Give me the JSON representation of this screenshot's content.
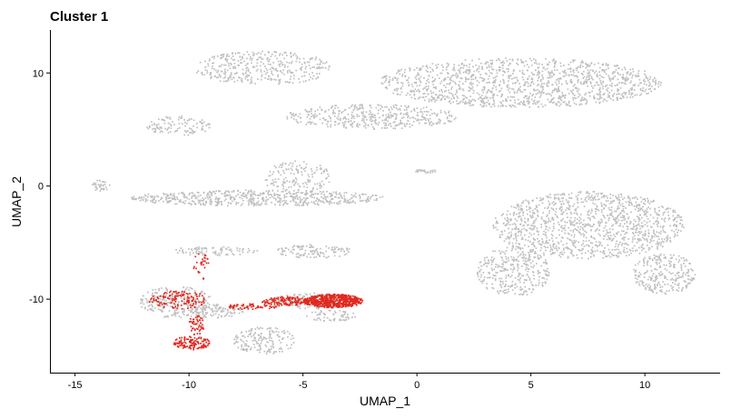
{
  "chart_data": {
    "type": "scatter",
    "title": "Cluster 1",
    "xlabel": "UMAP_1",
    "ylabel": "UMAP_2",
    "xlim": [
      -16.1,
      13.3
    ],
    "ylim": [
      -16.5,
      13.8
    ],
    "x_ticks": [
      -15,
      -10,
      -5,
      0,
      5,
      10
    ],
    "y_ticks": [
      -10,
      0,
      10
    ],
    "grid": false,
    "legend": "none",
    "colors": {
      "background_cells": "#c0c0c0",
      "highlighted_cells": "#e0291f"
    },
    "series": [
      {
        "role": "background",
        "regions": [
          {
            "cx": 4.5,
            "cy": 9.2,
            "rx": 6.2,
            "ry": 2.2,
            "n": 1300
          },
          {
            "cx": -2.0,
            "cy": 6.2,
            "rx": 3.8,
            "ry": 1.1,
            "n": 420
          },
          {
            "cx": -6.8,
            "cy": 10.5,
            "rx": 3.0,
            "ry": 1.5,
            "n": 380
          },
          {
            "cx": -10.5,
            "cy": 5.4,
            "rx": 1.4,
            "ry": 0.9,
            "n": 110
          },
          {
            "cx": -7.0,
            "cy": -1.0,
            "rx": 5.6,
            "ry": 0.7,
            "n": 600
          },
          {
            "cx": -5.3,
            "cy": 0.8,
            "rx": 1.5,
            "ry": 1.5,
            "n": 160
          },
          {
            "cx": -4.5,
            "cy": -5.7,
            "rx": 1.7,
            "ry": 0.6,
            "n": 120
          },
          {
            "cx": -9.0,
            "cy": -5.7,
            "rx": 2.0,
            "ry": 0.4,
            "n": 90
          },
          {
            "cx": 7.5,
            "cy": -3.4,
            "rx": 4.2,
            "ry": 3.0,
            "n": 1200
          },
          {
            "cx": 4.2,
            "cy": -7.5,
            "rx": 1.6,
            "ry": 2.2,
            "n": 330
          },
          {
            "cx": 10.8,
            "cy": -7.7,
            "rx": 1.4,
            "ry": 1.8,
            "n": 260
          },
          {
            "cx": -13.9,
            "cy": 0.1,
            "rx": 0.4,
            "ry": 0.5,
            "n": 40
          },
          {
            "cx": 0.4,
            "cy": 1.4,
            "rx": 0.5,
            "ry": 0.2,
            "n": 25
          },
          {
            "cx": -6.7,
            "cy": -13.6,
            "rx": 1.4,
            "ry": 1.2,
            "n": 170
          },
          {
            "cx": -8.8,
            "cy": -11.0,
            "rx": 1.2,
            "ry": 0.6,
            "n": 110
          },
          {
            "cx": -10.6,
            "cy": -10.2,
            "rx": 1.6,
            "ry": 1.4,
            "n": 240
          },
          {
            "cx": -4.6,
            "cy": -10.1,
            "rx": 2.0,
            "ry": 0.7,
            "n": 200
          },
          {
            "cx": -3.8,
            "cy": -11.4,
            "rx": 1.1,
            "ry": 0.5,
            "n": 60
          }
        ]
      },
      {
        "role": "highlighted",
        "name": "Cluster 1",
        "regions": [
          {
            "cx": -3.7,
            "cy": -10.1,
            "rx": 1.3,
            "ry": 0.6,
            "n": 520
          },
          {
            "cx": -5.6,
            "cy": -10.1,
            "rx": 1.3,
            "ry": 0.4,
            "n": 170
          },
          {
            "cx": -7.2,
            "cy": -10.6,
            "rx": 1.2,
            "ry": 0.25,
            "n": 60
          },
          {
            "cx": -10.5,
            "cy": -10.0,
            "rx": 1.3,
            "ry": 0.8,
            "n": 130
          },
          {
            "cx": -9.9,
            "cy": -13.8,
            "rx": 0.8,
            "ry": 0.6,
            "n": 120
          },
          {
            "cx": -9.7,
            "cy": -12.2,
            "rx": 0.35,
            "ry": 0.9,
            "n": 50
          },
          {
            "cx": -9.5,
            "cy": -7.0,
            "rx": 0.35,
            "ry": 1.2,
            "n": 30
          }
        ]
      }
    ]
  }
}
